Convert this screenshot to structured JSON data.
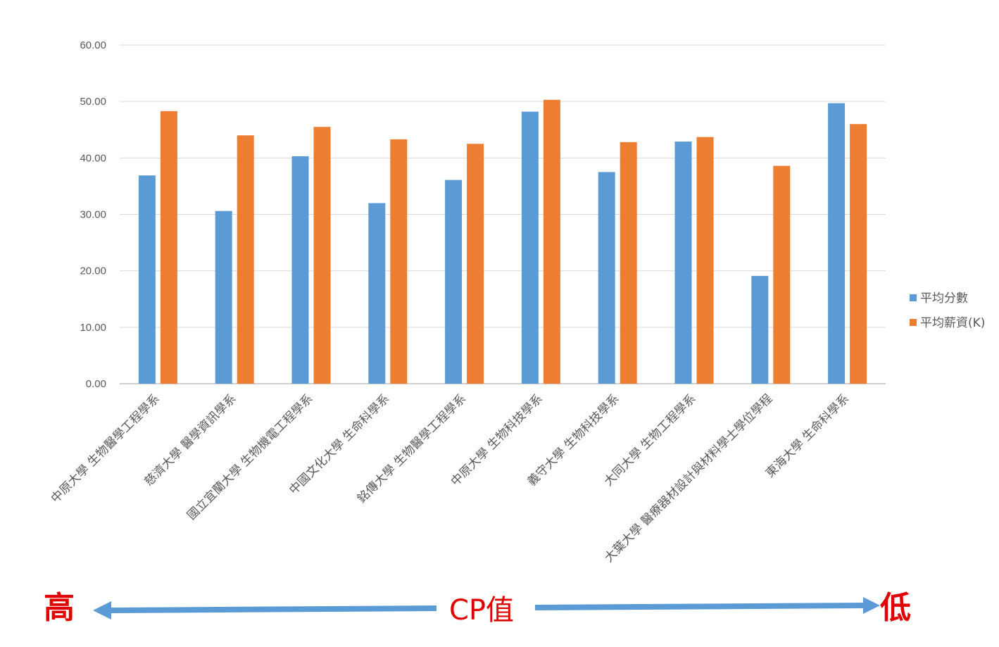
{
  "chart_data": {
    "type": "bar",
    "categories": [
      "中原大學 生物醫學工程學系",
      "慈濟大學 醫學資訊學系",
      "國立宜蘭大學 生物機電工程學系",
      "中國文化大學 生命科學系",
      "銘傳大學 生物醫學工程學系",
      "中原大學 生物科技學系",
      "義守大學 生物科技學系",
      "大同大學 生物工程學系",
      "大葉大學 醫療器材設計與材料學士學位學程",
      "東海大學 生命科學系"
    ],
    "series": [
      {
        "name": "平均分數",
        "color": "#5b9bd5",
        "values": [
          36.9,
          30.6,
          40.3,
          32.0,
          36.1,
          48.2,
          37.5,
          42.9,
          19.1,
          49.7
        ]
      },
      {
        "name": "平均薪資(K)",
        "color": "#ed7d31",
        "values": [
          48.3,
          44.0,
          45.5,
          43.3,
          42.5,
          50.3,
          42.8,
          43.7,
          38.6,
          46.0
        ]
      }
    ],
    "ylim": [
      0,
      60
    ],
    "yticks": [
      "0.00",
      "10.00",
      "20.00",
      "30.00",
      "40.00",
      "50.00",
      "60.00"
    ],
    "title": "",
    "xlabel": "",
    "ylabel": "",
    "grid": true,
    "legend_position": "right"
  },
  "annotation": {
    "high_label": "高",
    "center_label": "CP值",
    "low_label": "低",
    "text_color": "#e00000",
    "arrow_color": "#5b9bd5"
  }
}
